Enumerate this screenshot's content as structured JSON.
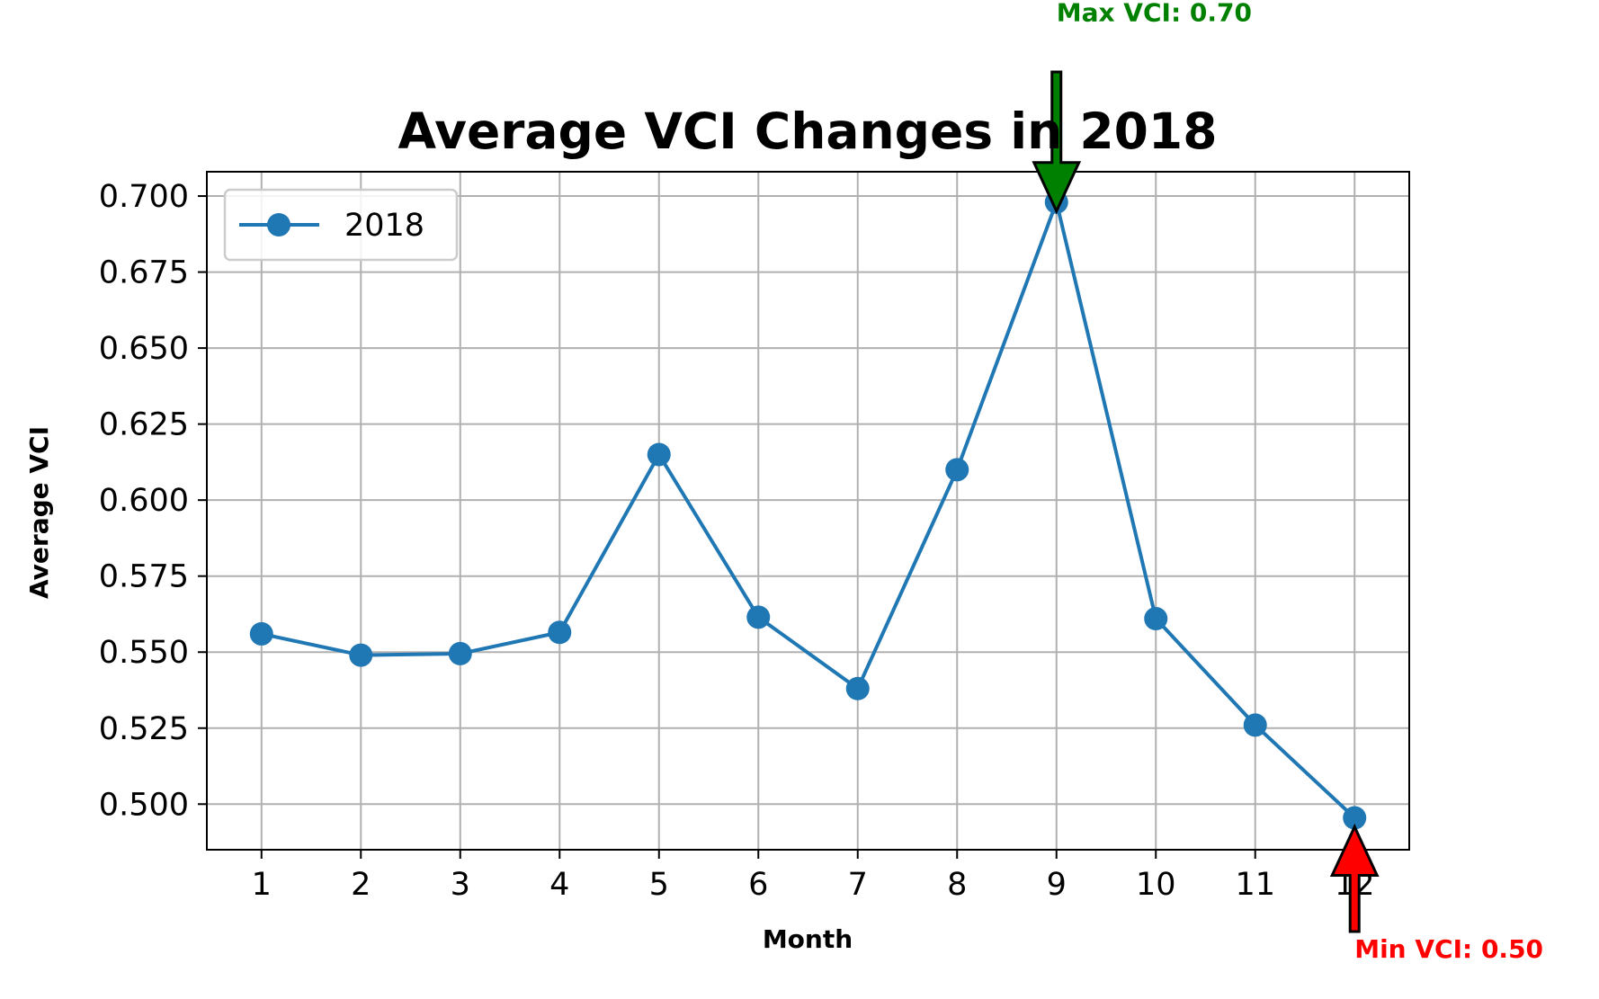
{
  "chart_data": {
    "type": "line",
    "title": "Average VCI Changes in 2018",
    "xlabel": "Month",
    "ylabel": "Average VCI",
    "x": [
      1,
      2,
      3,
      4,
      5,
      6,
      7,
      8,
      9,
      10,
      11,
      12
    ],
    "xticks": [
      "1",
      "2",
      "3",
      "4",
      "5",
      "6",
      "7",
      "8",
      "9",
      "10",
      "11",
      "12"
    ],
    "yticks": [
      "0.500",
      "0.525",
      "0.550",
      "0.575",
      "0.600",
      "0.625",
      "0.650",
      "0.675",
      "0.700"
    ],
    "ytick_values": [
      0.5,
      0.525,
      0.55,
      0.575,
      0.6,
      0.625,
      0.65,
      0.675,
      0.7
    ],
    "xlim": [
      0.45,
      12.55
    ],
    "ylim": [
      0.485,
      0.708
    ],
    "grid": true,
    "legend_position": "upper-left",
    "series": [
      {
        "name": "2018",
        "color": "#1f77b4",
        "values": [
          0.556,
          0.549,
          0.5495,
          0.5565,
          0.615,
          0.5615,
          0.538,
          0.61,
          0.698,
          0.561,
          0.526,
          0.4955
        ]
      }
    ],
    "annotations": [
      {
        "text": "Max VCI: 0.70",
        "color": "#008000",
        "x": 9,
        "y": 0.698,
        "arrow": "down",
        "text_x": 9.0,
        "text_y": 0.7575
      },
      {
        "text": "Min VCI: 0.50",
        "color": "#ff0000",
        "x": 12,
        "y": 0.4955,
        "arrow": "up",
        "text_x": 12.0,
        "text_y": 0.4495
      }
    ]
  }
}
